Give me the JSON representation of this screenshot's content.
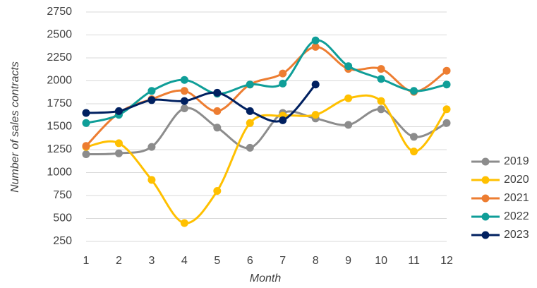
{
  "chart_data": {
    "type": "line",
    "x_label": "Month",
    "y_label": "Number of sales contracts",
    "x": [
      1,
      2,
      3,
      4,
      5,
      6,
      7,
      8,
      9,
      10,
      11,
      12
    ],
    "xlim": [
      1,
      12
    ],
    "xticks": [
      1,
      2,
      3,
      4,
      5,
      6,
      7,
      8,
      9,
      10,
      11,
      12
    ],
    "ylim": [
      250,
      2750
    ],
    "yticks": [
      250,
      500,
      750,
      1000,
      1250,
      1500,
      1750,
      2000,
      2250,
      2500,
      2750
    ],
    "grid": true,
    "legend": "right",
    "smooth": true,
    "series": [
      {
        "name": "2019",
        "color": "#8c8c8c",
        "values": [
          1200,
          1210,
          1280,
          1700,
          1490,
          1270,
          1650,
          1590,
          1520,
          1690,
          1390,
          1540
        ]
      },
      {
        "name": "2020",
        "color": "#ffc000",
        "values": [
          1280,
          1320,
          920,
          450,
          800,
          1540,
          1620,
          1630,
          1810,
          1780,
          1230,
          1690
        ]
      },
      {
        "name": "2021",
        "color": "#ed7d31",
        "values": [
          1290,
          1650,
          1800,
          1890,
          1670,
          1960,
          2080,
          2370,
          2130,
          2130,
          1880,
          2110
        ]
      },
      {
        "name": "2022",
        "color": "#0f9e98",
        "values": [
          1540,
          1630,
          1890,
          2010,
          1860,
          1960,
          1970,
          2440,
          2160,
          2020,
          1890,
          1960
        ]
      },
      {
        "name": "2023",
        "color": "#002060",
        "values": [
          1650,
          1670,
          1790,
          1780,
          1870,
          1670,
          1570,
          1960,
          null,
          null,
          null,
          null
        ]
      }
    ]
  }
}
